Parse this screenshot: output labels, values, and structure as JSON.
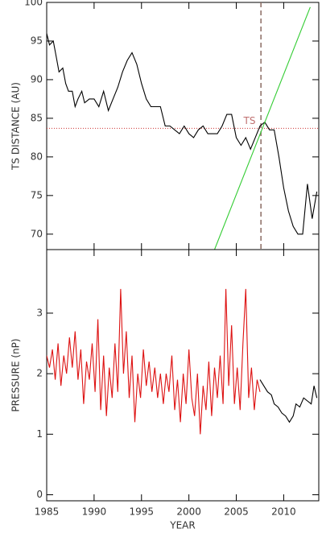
{
  "chart_data": [
    {
      "type": "line",
      "ylabel": "TS DISTANCE (AU)",
      "xlim": [
        1985,
        2013.7
      ],
      "ylim": [
        68,
        100
      ],
      "xticks": [
        1985,
        1990,
        1995,
        2000,
        2005,
        2010
      ],
      "yticks": [
        70,
        75,
        80,
        85,
        90,
        95,
        100
      ],
      "series": [
        {
          "color": "#000000",
          "x": [
            1985.0,
            1985.3,
            1985.7,
            1986.0,
            1986.3,
            1986.7,
            1987.0,
            1987.3,
            1987.7,
            1988.0,
            1988.3,
            1988.7,
            1989.0,
            1989.5,
            1990.0,
            1990.5,
            1991.0,
            1991.5,
            1992.0,
            1992.5,
            1993.0,
            1993.5,
            1994.0,
            1994.5,
            1995.0,
            1995.5,
            1996.0,
            1996.5,
            1997.0,
            1997.5,
            1998.0,
            1998.5,
            1999.0,
            1999.5,
            2000.0,
            2000.5,
            2001.0,
            2001.5,
            2002.0,
            2002.5,
            2003.0,
            2003.5,
            2004.0,
            2004.5,
            2005.0,
            2005.5,
            2006.0,
            2006.5,
            2007.0,
            2007.5,
            2008.0,
            2008.5,
            2009.0,
            2009.5,
            2010.0,
            2010.5,
            2011.0,
            2011.5,
            2012.0,
            2012.5,
            2013.0,
            2013.5
          ],
          "values": [
            96,
            94.5,
            95,
            93,
            91,
            91.5,
            89.5,
            88.5,
            88.5,
            86.5,
            87.5,
            88.5,
            87,
            87.5,
            87.5,
            86.5,
            88.5,
            86,
            87.5,
            89,
            91,
            92.5,
            93.5,
            92,
            89.5,
            87.5,
            86.5,
            86.5,
            86.5,
            84,
            84,
            83.5,
            83,
            84,
            83,
            82.5,
            83.5,
            84,
            83,
            83,
            83,
            84,
            85.5,
            85.5,
            82.5,
            81.5,
            82.5,
            81,
            82.5,
            84,
            84.5,
            83.5,
            83.5,
            80,
            76,
            73,
            71,
            70,
            70,
            76.5,
            72,
            75.5
          ]
        },
        {
          "color": "#33cc33",
          "x": [
            2002.7,
            2012.8
          ],
          "values": [
            68,
            99.4
          ]
        }
      ],
      "hlines": [
        {
          "value": 83.7,
          "color": "#cc3333"
        }
      ],
      "vlines": [
        {
          "value": 2007.6,
          "color": "#8b6b63"
        }
      ],
      "annotations": [
        {
          "text": "TS",
          "x": 2006.4,
          "y": 84.6,
          "color": "#c07070"
        }
      ]
    },
    {
      "type": "line",
      "ylabel": "PRESSURE (nP)",
      "xlabel": "YEAR",
      "xlim": [
        1985,
        2013.7
      ],
      "ylim": [
        -0.1,
        4.05
      ],
      "xticks": [
        1985,
        1990,
        1995,
        2000,
        2005,
        2010
      ],
      "yticks": [
        0,
        1,
        2,
        3
      ],
      "series": [
        {
          "color": "#dd1111",
          "x": [
            1985.0,
            1985.3,
            1985.6,
            1985.9,
            1986.2,
            1986.5,
            1986.8,
            1987.1,
            1987.4,
            1987.7,
            1988.0,
            1988.3,
            1988.6,
            1988.9,
            1989.2,
            1989.5,
            1989.8,
            1990.1,
            1990.4,
            1990.7,
            1991.0,
            1991.3,
            1991.6,
            1991.9,
            1992.2,
            1992.5,
            1992.8,
            1993.1,
            1993.4,
            1993.7,
            1994.0,
            1994.3,
            1994.6,
            1994.9,
            1995.2,
            1995.5,
            1995.8,
            1996.1,
            1996.4,
            1996.7,
            1997.0,
            1997.3,
            1997.6,
            1997.9,
            1998.2,
            1998.5,
            1998.8,
            1999.1,
            1999.4,
            1999.7,
            2000.0,
            2000.3,
            2000.6,
            2000.9,
            2001.2,
            2001.5,
            2001.8,
            2002.1,
            2002.4,
            2002.7,
            2003.0,
            2003.3,
            2003.6,
            2003.9,
            2004.2,
            2004.5,
            2004.8,
            2005.1,
            2005.4,
            2005.7,
            2006.0,
            2006.3,
            2006.6,
            2006.9,
            2007.2,
            2007.5
          ],
          "values": [
            2.3,
            2.1,
            2.4,
            1.9,
            2.5,
            1.8,
            2.3,
            2.0,
            2.6,
            2.1,
            2.7,
            1.9,
            2.4,
            1.5,
            2.2,
            1.9,
            2.5,
            1.7,
            2.9,
            1.4,
            2.3,
            1.3,
            2.1,
            1.6,
            2.5,
            1.7,
            3.4,
            2.0,
            2.7,
            1.6,
            2.3,
            1.2,
            2.0,
            1.6,
            2.4,
            1.8,
            2.2,
            1.7,
            2.1,
            1.6,
            2.0,
            1.5,
            2.0,
            1.7,
            2.3,
            1.4,
            1.9,
            1.2,
            2.0,
            1.5,
            2.4,
            1.6,
            1.3,
            2.0,
            1.0,
            1.8,
            1.4,
            2.2,
            1.3,
            2.1,
            1.6,
            2.3,
            1.5,
            3.4,
            1.8,
            2.8,
            1.5,
            2.1,
            1.4,
            2.5,
            3.4,
            1.6,
            2.1,
            1.4,
            1.9,
            1.7
          ]
        },
        {
          "color": "#000000",
          "x": [
            2007.5,
            2007.9,
            2008.3,
            2008.7,
            2009.0,
            2009.4,
            2009.8,
            2010.2,
            2010.6,
            2011.0,
            2011.3,
            2011.7,
            2012.1,
            2012.5,
            2012.9,
            2013.2,
            2013.5
          ],
          "values": [
            1.9,
            1.8,
            1.7,
            1.65,
            1.5,
            1.45,
            1.35,
            1.3,
            1.2,
            1.3,
            1.5,
            1.45,
            1.6,
            1.55,
            1.5,
            1.8,
            1.6
          ]
        }
      ]
    }
  ]
}
